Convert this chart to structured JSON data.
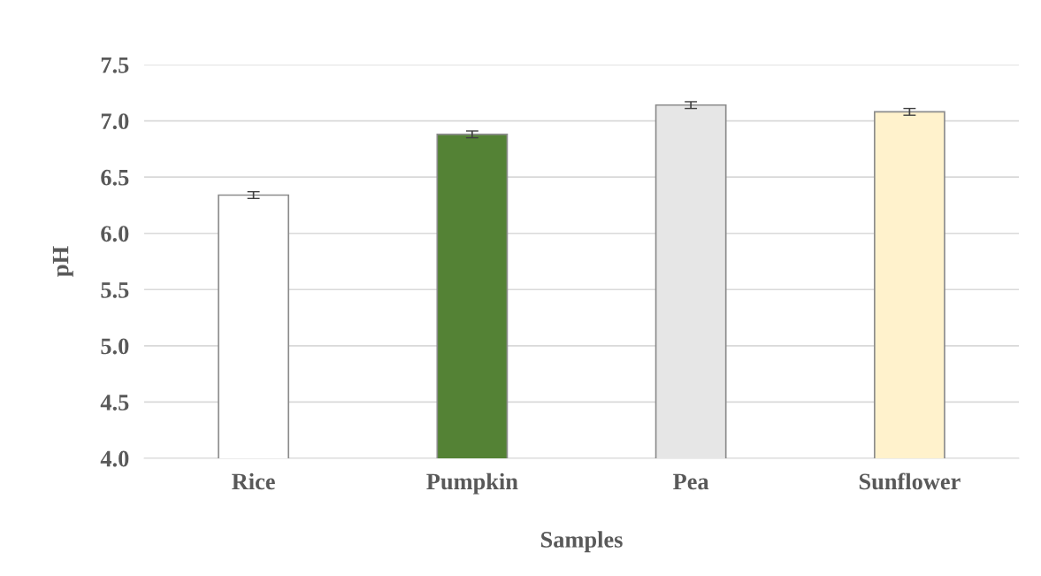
{
  "chart_data": {
    "type": "bar",
    "xlabel": "Samples",
    "ylabel": "pH",
    "categories": [
      "Rice",
      "Pumpkin",
      "Pea",
      "Sunflower"
    ],
    "values": [
      6.34,
      6.88,
      7.14,
      7.08
    ],
    "errors": [
      0.03,
      0.03,
      0.03,
      0.03
    ],
    "colors": [
      "#ffffff",
      "#548235",
      "#e6e6e6",
      "#fff2cc"
    ],
    "ylim": [
      4.0,
      7.5
    ],
    "yticks": [
      {
        "value": 4.0,
        "label": "4.0"
      },
      {
        "value": 4.5,
        "label": "4.5"
      },
      {
        "value": 5.0,
        "label": "5.0"
      },
      {
        "value": 5.5,
        "label": "5.5"
      },
      {
        "value": 6.0,
        "label": "6.0"
      },
      {
        "value": 6.5,
        "label": "6.5"
      },
      {
        "value": 7.0,
        "label": "7.0"
      },
      {
        "value": 7.5,
        "label": "7.5"
      }
    ],
    "grid": "y"
  }
}
